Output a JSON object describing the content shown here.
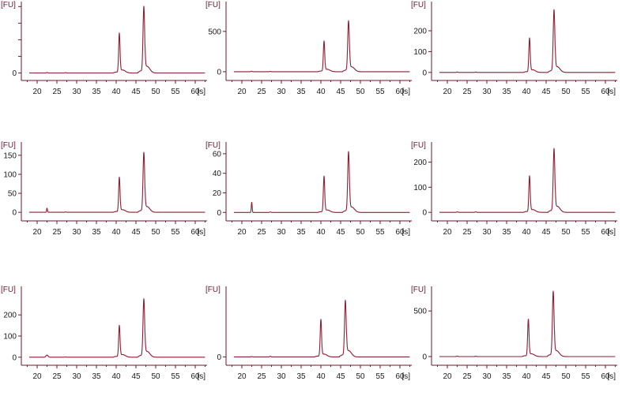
{
  "chart_data": [
    {
      "type": "line",
      "ylabel": "[FU]",
      "xlabel": "[s]",
      "xlim": [
        16,
        63
      ],
      "ylim": [
        -6,
        215
      ],
      "x_ticks": [
        20,
        25,
        30,
        35,
        40,
        45,
        50,
        55,
        60
      ],
      "y_ticks": [
        0,
        50,
        100,
        150,
        200
      ],
      "y_tick_labels": [
        "0",
        "",
        "",
        "",
        ""
      ],
      "baseline": 0,
      "peaks": [
        {
          "x": 22.5,
          "y": 1.5,
          "w": 0.2
        },
        {
          "x": 27.2,
          "y": 1,
          "w": 0.2
        },
        {
          "x": 40.8,
          "y": 120,
          "w": 0.25,
          "shoulder": 18
        },
        {
          "x": 47.0,
          "y": 200,
          "w": 0.3,
          "shoulder": 40
        }
      ]
    },
    {
      "type": "line",
      "ylabel": "[FU]",
      "xlabel": "[s]",
      "xlim": [
        16,
        63
      ],
      "ylim": [
        -40,
        870
      ],
      "x_ticks": [
        20,
        25,
        30,
        35,
        40,
        45,
        50,
        55,
        60
      ],
      "y_ticks": [
        0,
        500
      ],
      "y_tick_labels": [
        "0",
        "500"
      ],
      "baseline": 0,
      "peaks": [
        {
          "x": 22.5,
          "y": 6,
          "w": 0.2
        },
        {
          "x": 27.2,
          "y": 4,
          "w": 0.2
        },
        {
          "x": 40.8,
          "y": 380,
          "w": 0.25,
          "shoulder": 60
        },
        {
          "x": 47.0,
          "y": 630,
          "w": 0.3,
          "shoulder": 120
        }
      ]
    },
    {
      "type": "line",
      "ylabel": "[FU]",
      "xlabel": "[s]",
      "xlim": [
        16,
        63
      ],
      "ylim": [
        -12,
        340
      ],
      "x_ticks": [
        20,
        25,
        30,
        35,
        40,
        45,
        50,
        55,
        60
      ],
      "y_ticks": [
        0,
        100,
        200
      ],
      "y_tick_labels": [
        "0",
        "100",
        "200"
      ],
      "baseline": 0,
      "peaks": [
        {
          "x": 22.5,
          "y": 2,
          "w": 0.2
        },
        {
          "x": 27.2,
          "y": 2,
          "w": 0.2
        },
        {
          "x": 40.8,
          "y": 165,
          "w": 0.25,
          "shoulder": 25
        },
        {
          "x": 47.0,
          "y": 300,
          "w": 0.3,
          "shoulder": 55
        }
      ]
    },
    {
      "type": "line",
      "ylabel": "[FU]",
      "xlabel": "[s]",
      "xlim": [
        16,
        63
      ],
      "ylim": [
        -8,
        185
      ],
      "x_ticks": [
        20,
        25,
        30,
        35,
        40,
        45,
        50,
        55,
        60
      ],
      "y_ticks": [
        0,
        50,
        100,
        150
      ],
      "y_tick_labels": [
        "0",
        "50",
        "100",
        "150"
      ],
      "baseline": 0,
      "peaks": [
        {
          "x": 22.5,
          "y": 11,
          "w": 0.15
        },
        {
          "x": 27.2,
          "y": 1,
          "w": 0.2
        },
        {
          "x": 40.8,
          "y": 92,
          "w": 0.25,
          "shoulder": 14
        },
        {
          "x": 47.0,
          "y": 157,
          "w": 0.3,
          "shoulder": 30
        }
      ]
    },
    {
      "type": "line",
      "ylabel": "[FU]",
      "xlabel": "[s]",
      "xlim": [
        16,
        63
      ],
      "ylim": [
        -3,
        72
      ],
      "x_ticks": [
        20,
        25,
        30,
        35,
        40,
        45,
        50,
        55,
        60
      ],
      "y_ticks": [
        0,
        20,
        40,
        60
      ],
      "y_tick_labels": [
        "0",
        "20",
        "40",
        "60"
      ],
      "baseline": 0,
      "peaks": [
        {
          "x": 22.5,
          "y": 10.5,
          "w": 0.15
        },
        {
          "x": 27.2,
          "y": 0.5,
          "w": 0.2
        },
        {
          "x": 40.8,
          "y": 37,
          "w": 0.25,
          "shoulder": 5
        },
        {
          "x": 47.0,
          "y": 62,
          "w": 0.3,
          "shoulder": 11
        }
      ]
    },
    {
      "type": "line",
      "ylabel": "[FU]",
      "xlabel": "[s]",
      "xlim": [
        16,
        63
      ],
      "ylim": [
        -12,
        280
      ],
      "x_ticks": [
        20,
        25,
        30,
        35,
        40,
        45,
        50,
        55,
        60
      ],
      "y_ticks": [
        0,
        100,
        200
      ],
      "y_tick_labels": [
        "0",
        "100",
        "200"
      ],
      "baseline": 0,
      "peaks": [
        {
          "x": 22.5,
          "y": 2,
          "w": 0.2
        },
        {
          "x": 27.2,
          "y": 2,
          "w": 0.2
        },
        {
          "x": 40.8,
          "y": 145,
          "w": 0.25,
          "shoulder": 22
        },
        {
          "x": 47.0,
          "y": 253,
          "w": 0.3,
          "shoulder": 48
        }
      ]
    },
    {
      "type": "line",
      "ylabel": "[FU]",
      "xlabel": "[s]",
      "xlim": [
        16,
        63
      ],
      "ylim": [
        -12,
        335
      ],
      "x_ticks": [
        20,
        25,
        30,
        35,
        40,
        45,
        50,
        55,
        60
      ],
      "y_ticks": [
        0,
        100,
        200
      ],
      "y_tick_labels": [
        "0",
        "100",
        "200"
      ],
      "baseline": 0,
      "peaks": [
        {
          "x": 22.5,
          "y": 10,
          "w": 0.35
        },
        {
          "x": 27.2,
          "y": 1,
          "w": 0.2
        },
        {
          "x": 40.8,
          "y": 150,
          "w": 0.25,
          "shoulder": 25
        },
        {
          "x": 47.0,
          "y": 275,
          "w": 0.3,
          "shoulder": 55
        }
      ]
    },
    {
      "type": "line",
      "ylabel": "[FU]",
      "xlabel": "[s]",
      "xlim": [
        16,
        63
      ],
      "ylim": [
        -4,
        100
      ],
      "x_ticks": [
        20,
        25,
        30,
        35,
        40,
        45,
        50,
        55,
        60
      ],
      "y_ticks": [
        0
      ],
      "y_tick_labels": [
        "0"
      ],
      "baseline": 0,
      "peaks": [
        {
          "x": 22.5,
          "y": 0.5,
          "w": 0.2
        },
        {
          "x": 27.2,
          "y": 1,
          "w": 0.2
        },
        {
          "x": 40.0,
          "y": 53,
          "w": 0.25,
          "shoulder": 8
        },
        {
          "x": 46.2,
          "y": 80,
          "w": 0.3,
          "shoulder": 18
        }
      ]
    },
    {
      "type": "line",
      "ylabel": "[FU]",
      "xlabel": "[s]",
      "xlim": [
        16,
        63
      ],
      "ylim": [
        -35,
        770
      ],
      "x_ticks": [
        20,
        25,
        30,
        35,
        40,
        45,
        50,
        55,
        60
      ],
      "y_ticks": [
        0,
        500
      ],
      "y_tick_labels": [
        "0",
        "500"
      ],
      "baseline": 0,
      "peaks": [
        {
          "x": 22.5,
          "y": 5,
          "w": 0.2
        },
        {
          "x": 27.2,
          "y": 3,
          "w": 0.2
        },
        {
          "x": 40.5,
          "y": 410,
          "w": 0.25,
          "shoulder": 60
        },
        {
          "x": 46.8,
          "y": 715,
          "w": 0.3,
          "shoulder": 130
        }
      ]
    }
  ]
}
